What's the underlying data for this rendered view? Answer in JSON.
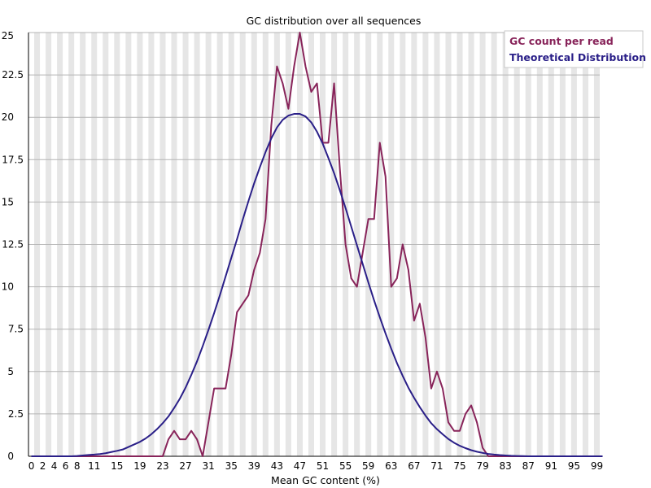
{
  "chart_data": {
    "type": "line",
    "title": "GC distribution over all sequences",
    "xlabel": "Mean GC content (%)",
    "ylabel": "",
    "xlim": [
      0,
      100
    ],
    "ylim": [
      0,
      25
    ],
    "x_ticks": [
      "0",
      "2",
      "4",
      "6",
      "8",
      "11",
      "15",
      "19",
      "23",
      "27",
      "31",
      "35",
      "39",
      "43",
      "47",
      "51",
      "55",
      "59",
      "63",
      "67",
      "71",
      "75",
      "79",
      "83",
      "87",
      "91",
      "95",
      "99"
    ],
    "y_ticks": [
      "0",
      "2.5",
      "5",
      "7.5",
      "10",
      "12.5",
      "15",
      "17.5",
      "20",
      "22.5",
      "25"
    ],
    "grid": true,
    "legend_position": "top-right",
    "series": [
      {
        "name": "GC count per read",
        "color": "#88245a",
        "x": [
          0,
          1,
          2,
          3,
          4,
          5,
          6,
          7,
          8,
          9,
          10,
          11,
          12,
          13,
          14,
          15,
          16,
          17,
          18,
          19,
          20,
          21,
          22,
          23,
          24,
          25,
          26,
          27,
          28,
          29,
          30,
          31,
          32,
          33,
          34,
          35,
          36,
          37,
          38,
          39,
          40,
          41,
          42,
          43,
          44,
          45,
          46,
          47,
          48,
          49,
          50,
          51,
          52,
          53,
          54,
          55,
          56,
          57,
          58,
          59,
          60,
          61,
          62,
          63,
          64,
          65,
          66,
          67,
          68,
          69,
          70,
          71,
          72,
          73,
          74,
          75,
          76,
          77,
          78,
          79,
          80,
          81,
          82,
          83,
          84,
          85,
          86,
          87,
          88,
          89,
          90,
          91,
          92,
          93,
          94,
          95,
          96,
          97,
          98,
          99,
          100
        ],
        "y": [
          0,
          0,
          0,
          0,
          0,
          0,
          0,
          0,
          0,
          0,
          0,
          0,
          0,
          0,
          0,
          0,
          0,
          0,
          0,
          0,
          0,
          0,
          0,
          0,
          1,
          1.5,
          1,
          1,
          1.5,
          1,
          0,
          2,
          4,
          4,
          4,
          6,
          8.5,
          9,
          9.5,
          11,
          12,
          14,
          19.5,
          23,
          22,
          20.5,
          23,
          25,
          23,
          21.5,
          22,
          18.5,
          18.5,
          22,
          17,
          12.5,
          10.5,
          10,
          12,
          14,
          14,
          18.5,
          16.5,
          10,
          10.5,
          12.5,
          11,
          8,
          9,
          7,
          4,
          5,
          4,
          2,
          1.5,
          1.5,
          2.5,
          3,
          2,
          0.5,
          0,
          0,
          0,
          0,
          0,
          0,
          0,
          0,
          0,
          0,
          0,
          0,
          0,
          0,
          0,
          0,
          0,
          0,
          0,
          0,
          0
        ]
      },
      {
        "name": "Theoretical Distribution",
        "color": "#2a1f88",
        "x": [
          0,
          1,
          2,
          3,
          4,
          5,
          6,
          7,
          8,
          9,
          10,
          11,
          12,
          13,
          14,
          15,
          16,
          17,
          18,
          19,
          20,
          21,
          22,
          23,
          24,
          25,
          26,
          27,
          28,
          29,
          30,
          31,
          32,
          33,
          34,
          35,
          36,
          37,
          38,
          39,
          40,
          41,
          42,
          43,
          44,
          45,
          46,
          47,
          48,
          49,
          50,
          51,
          52,
          53,
          54,
          55,
          56,
          57,
          58,
          59,
          60,
          61,
          62,
          63,
          64,
          65,
          66,
          67,
          68,
          69,
          70,
          71,
          72,
          73,
          74,
          75,
          76,
          77,
          78,
          79,
          80,
          81,
          82,
          83,
          84,
          85,
          86,
          87,
          88,
          89,
          90,
          91,
          92,
          93,
          94,
          95,
          96,
          97,
          98,
          99,
          100
        ],
        "y": [
          0,
          0,
          0,
          0,
          0,
          0,
          0,
          0,
          0.02,
          0.05,
          0.08,
          0.1,
          0.13,
          0.18,
          0.25,
          0.32,
          0.4,
          0.55,
          0.7,
          0.85,
          1.05,
          1.3,
          1.6,
          1.95,
          2.35,
          2.85,
          3.4,
          4.05,
          4.8,
          5.6,
          6.5,
          7.45,
          8.45,
          9.5,
          10.6,
          11.7,
          12.8,
          13.95,
          15.05,
          16.1,
          17.05,
          17.95,
          18.75,
          19.4,
          19.85,
          20.1,
          20.2,
          20.2,
          20.05,
          19.7,
          19.15,
          18.45,
          17.6,
          16.7,
          15.7,
          14.65,
          13.55,
          12.45,
          11.35,
          10.25,
          9.2,
          8.2,
          7.25,
          6.35,
          5.5,
          4.75,
          4.05,
          3.45,
          2.9,
          2.4,
          1.95,
          1.6,
          1.3,
          1.02,
          0.8,
          0.62,
          0.48,
          0.36,
          0.27,
          0.2,
          0.14,
          0.1,
          0.07,
          0.05,
          0.03,
          0.02,
          0.01,
          0,
          0,
          0,
          0,
          0,
          0,
          0,
          0,
          0,
          0,
          0,
          0,
          0,
          0
        ]
      }
    ]
  }
}
